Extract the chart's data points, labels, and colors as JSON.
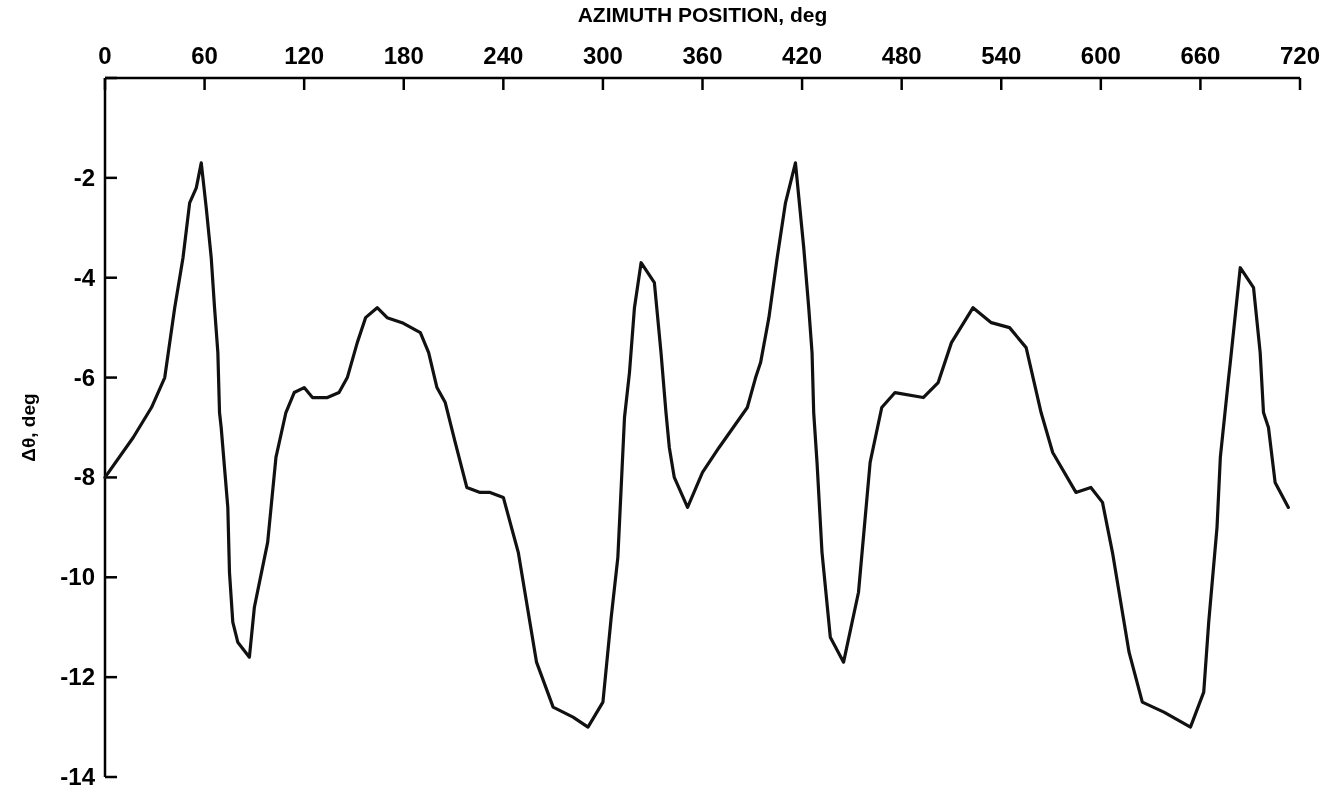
{
  "chart_data": {
    "type": "line",
    "xlabel": "AZIMUTH POSITION, deg",
    "ylabel": "Δθ, deg",
    "xlim": [
      0,
      720
    ],
    "xticks": [
      0,
      60,
      120,
      180,
      240,
      300,
      360,
      420,
      480,
      540,
      600,
      660,
      720
    ],
    "ylim": [
      -14,
      0
    ],
    "yticks": [
      {
        "value": 0,
        "label": null
      },
      -2,
      -4,
      -6,
      -8,
      -10,
      -12,
      -14
    ],
    "marker": "none",
    "line_style": "solid",
    "series": [
      {
        "color": "#111111",
        "x": [
          0,
          17,
          28,
          36,
          42,
          47,
          51,
          55,
          58,
          61,
          64,
          66,
          68,
          69,
          70,
          74,
          75,
          77,
          80,
          87,
          90,
          98,
          103,
          109,
          114,
          120,
          125,
          134,
          141,
          146,
          152,
          157,
          164,
          170,
          179,
          190,
          195,
          200,
          205,
          211,
          218,
          226,
          232,
          240,
          249,
          254,
          260,
          270,
          282,
          291,
          300,
          305,
          309,
          313,
          316,
          319,
          323,
          331,
          335,
          338,
          340,
          343,
          351,
          360,
          370,
          387,
          392,
          395,
          400,
          405,
          410,
          416,
          421,
          424,
          426,
          427,
          429,
          432,
          437,
          445,
          454,
          461,
          468,
          476,
          493,
          502,
          510,
          523,
          534,
          545,
          555,
          564,
          571,
          585,
          594,
          601,
          607,
          617,
          625,
          638,
          654,
          662,
          665,
          670,
          672,
          677,
          678,
          684,
          692,
          696,
          698,
          701,
          705,
          713
        ],
        "values": [
          -8.0,
          -7.2,
          -6.6,
          -6.0,
          -4.6,
          -3.6,
          -2.5,
          -2.2,
          -1.7,
          -2.6,
          -3.6,
          -4.6,
          -5.5,
          -6.7,
          -7.0,
          -8.6,
          -9.9,
          -10.9,
          -11.3,
          -11.6,
          -10.6,
          -9.3,
          -7.6,
          -6.7,
          -6.3,
          -6.2,
          -6.4,
          -6.4,
          -6.3,
          -6.0,
          -5.3,
          -4.8,
          -4.6,
          -4.8,
          -4.9,
          -5.1,
          -5.5,
          -6.2,
          -6.5,
          -7.3,
          -8.2,
          -8.3,
          -8.3,
          -8.4,
          -9.5,
          -10.5,
          -11.7,
          -12.6,
          -12.8,
          -13.0,
          -12.5,
          -10.8,
          -9.6,
          -6.8,
          -5.9,
          -4.6,
          -3.7,
          -4.1,
          -5.5,
          -6.7,
          -7.4,
          -8.0,
          -8.6,
          -7.9,
          -7.4,
          -6.6,
          -6.0,
          -5.7,
          -4.8,
          -3.6,
          -2.5,
          -1.7,
          -3.4,
          -4.6,
          -5.5,
          -6.7,
          -7.7,
          -9.5,
          -11.2,
          -11.7,
          -10.3,
          -7.7,
          -6.6,
          -6.3,
          -6.4,
          -6.1,
          -5.3,
          -4.6,
          -4.9,
          -5.0,
          -5.4,
          -6.7,
          -7.5,
          -8.3,
          -8.2,
          -8.5,
          -9.5,
          -11.5,
          -12.5,
          -12.7,
          -13.0,
          -12.3,
          -10.9,
          -9.0,
          -7.6,
          -6.0,
          -5.7,
          -3.8,
          -4.2,
          -5.5,
          -6.7,
          -7.0,
          -8.1,
          -8.6
        ]
      }
    ]
  }
}
